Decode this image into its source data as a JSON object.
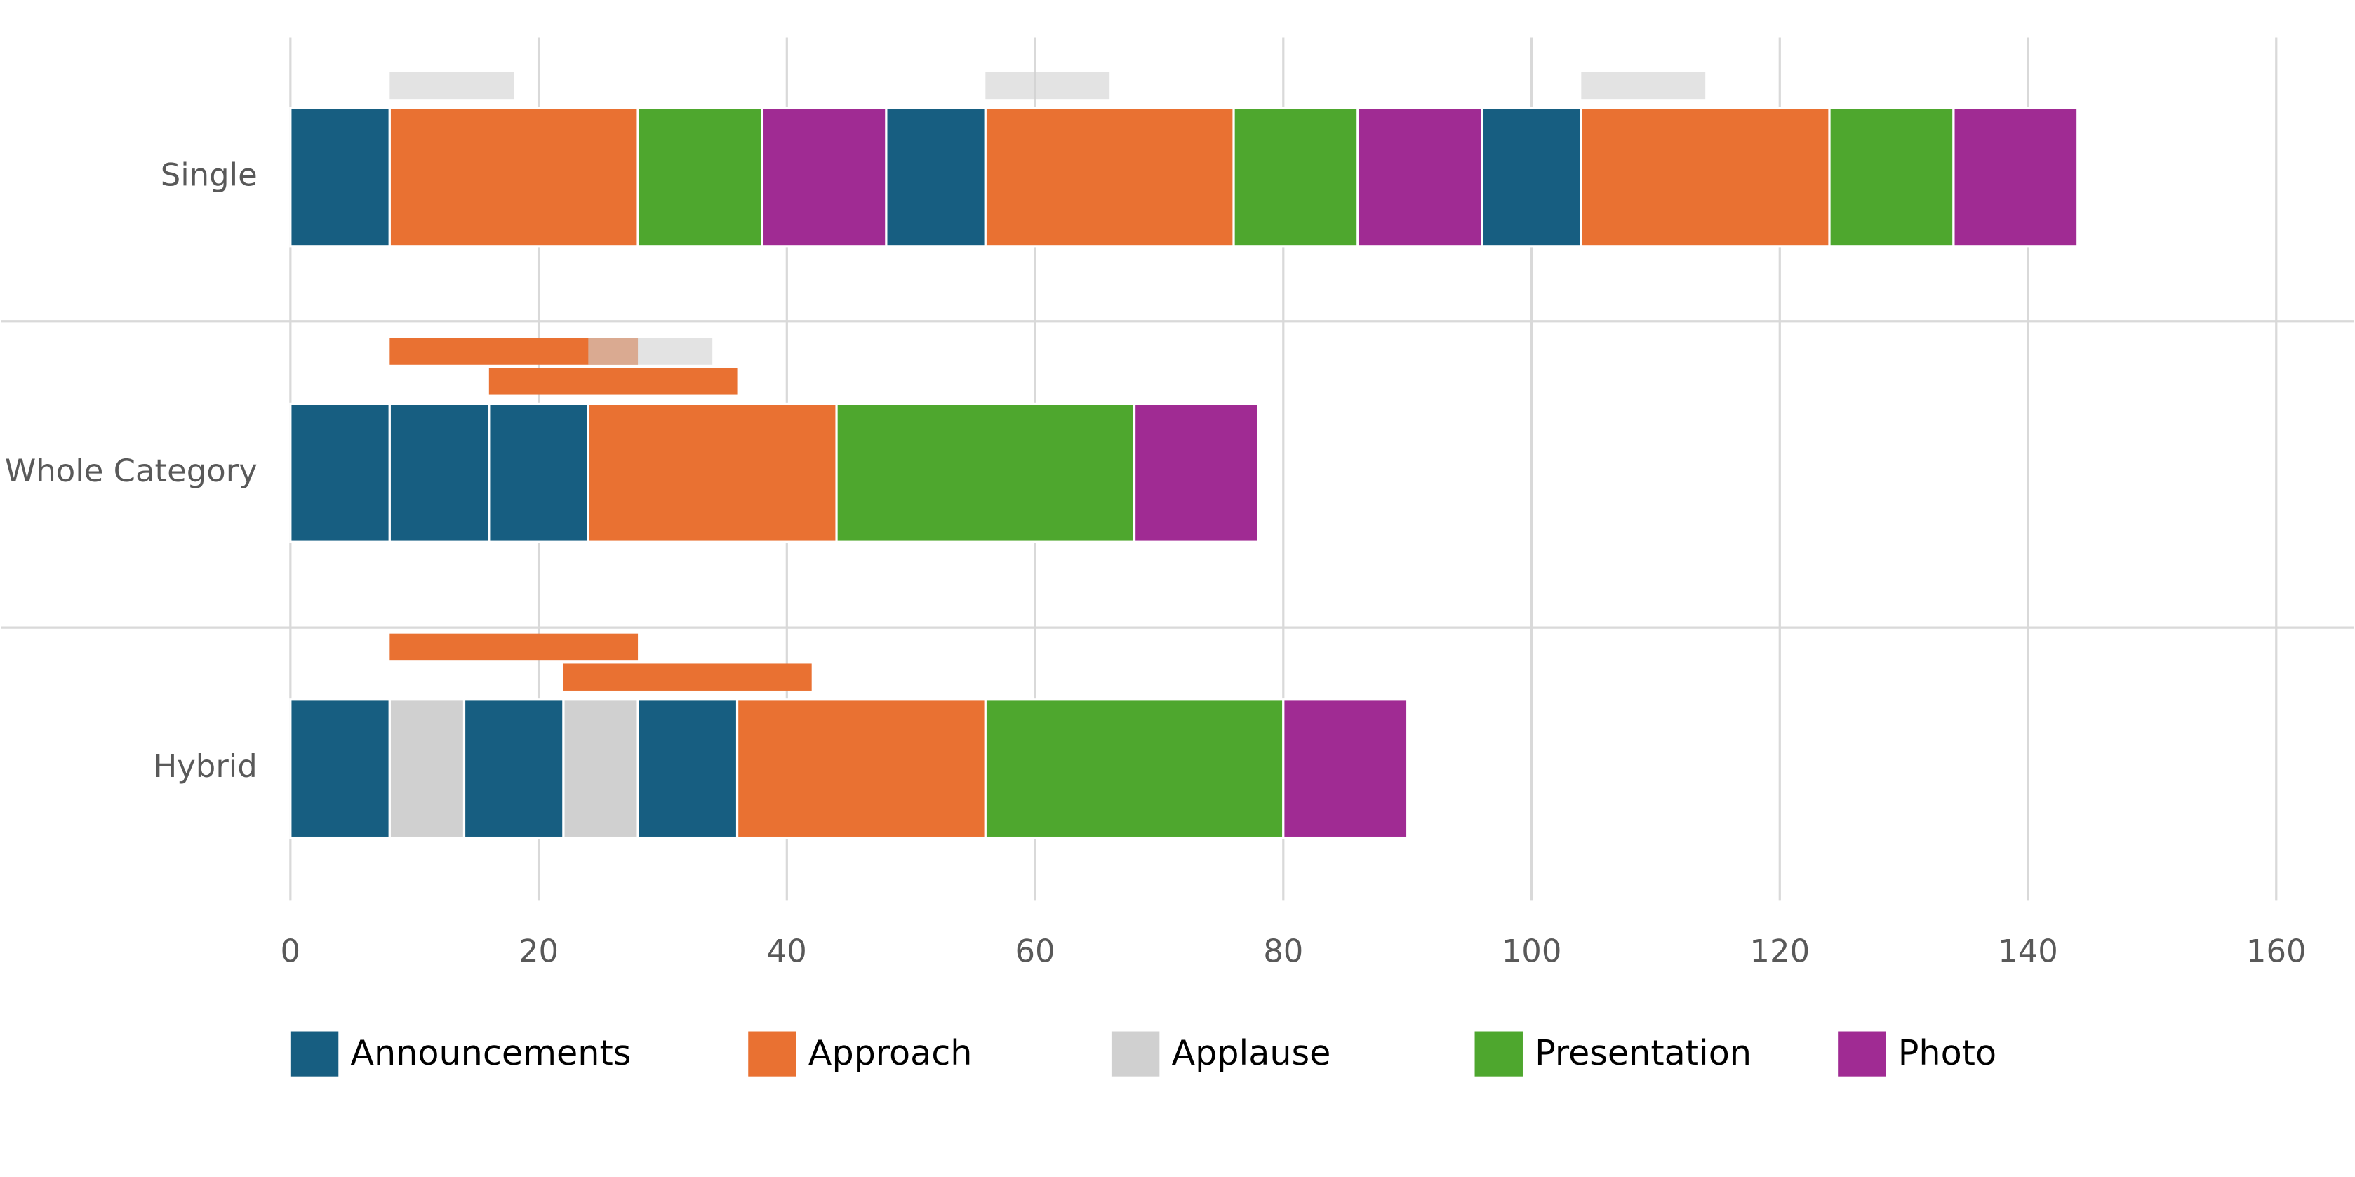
{
  "chart_data": {
    "type": "timeline-bar",
    "categories": [
      "Single",
      "Whole Category",
      "Hybrid"
    ],
    "xlim": [
      0,
      160
    ],
    "xticks": [
      0,
      20,
      40,
      60,
      80,
      100,
      120,
      140,
      160
    ],
    "grid": true,
    "legend": "bottom",
    "series": [
      {
        "name": "Announcements",
        "color": "#175e81",
        "segments": [
          {
            "category": "Single",
            "level": 0,
            "start": 0,
            "end": 8
          },
          {
            "category": "Single",
            "level": 0,
            "start": 48,
            "end": 56
          },
          {
            "category": "Single",
            "level": 0,
            "start": 96,
            "end": 104
          },
          {
            "category": "Whole Category",
            "level": 0,
            "start": 0,
            "end": 8
          },
          {
            "category": "Whole Category",
            "level": 0,
            "start": 8,
            "end": 16
          },
          {
            "category": "Whole Category",
            "level": 0,
            "start": 16,
            "end": 24
          },
          {
            "category": "Hybrid",
            "level": 0,
            "start": 0,
            "end": 8
          },
          {
            "category": "Hybrid",
            "level": 0,
            "start": 14,
            "end": 22
          },
          {
            "category": "Hybrid",
            "level": 0,
            "start": 28,
            "end": 36
          }
        ]
      },
      {
        "name": "Approach",
        "color": "#e97132",
        "segments": [
          {
            "category": "Single",
            "level": 0,
            "start": 8,
            "end": 28
          },
          {
            "category": "Single",
            "level": 0,
            "start": 56,
            "end": 76
          },
          {
            "category": "Single",
            "level": 0,
            "start": 104,
            "end": 124
          },
          {
            "category": "Whole Category",
            "level": 0,
            "start": 24,
            "end": 44
          },
          {
            "category": "Whole Category",
            "level": 1,
            "start": 8,
            "end": 28
          },
          {
            "category": "Whole Category",
            "level": 2,
            "start": 16,
            "end": 36
          },
          {
            "category": "Hybrid",
            "level": 0,
            "start": 36,
            "end": 56
          },
          {
            "category": "Hybrid",
            "level": 1,
            "start": 8,
            "end": 28
          },
          {
            "category": "Hybrid",
            "level": 2,
            "start": 22,
            "end": 42
          }
        ]
      },
      {
        "name": "Applause",
        "color": "#d0d0d0",
        "segments": [
          {
            "category": "Single",
            "level": 1,
            "start": 8,
            "end": 18
          },
          {
            "category": "Single",
            "level": 1,
            "start": 56,
            "end": 66
          },
          {
            "category": "Single",
            "level": 1,
            "start": 104,
            "end": 114
          },
          {
            "category": "Whole Category",
            "level": 1,
            "start": 24,
            "end": 34
          },
          {
            "category": "Hybrid",
            "level": 0,
            "start": 8,
            "end": 14
          },
          {
            "category": "Hybrid",
            "level": 0,
            "start": 22,
            "end": 28
          }
        ]
      },
      {
        "name": "Presentation",
        "color": "#4ea72e",
        "segments": [
          {
            "category": "Single",
            "level": 0,
            "start": 28,
            "end": 38
          },
          {
            "category": "Single",
            "level": 0,
            "start": 76,
            "end": 86
          },
          {
            "category": "Single",
            "level": 0,
            "start": 124,
            "end": 134
          },
          {
            "category": "Whole Category",
            "level": 0,
            "start": 44,
            "end": 68
          },
          {
            "category": "Hybrid",
            "level": 0,
            "start": 56,
            "end": 80
          }
        ]
      },
      {
        "name": "Photo",
        "color": "#a02b93",
        "segments": [
          {
            "category": "Single",
            "level": 0,
            "start": 38,
            "end": 48
          },
          {
            "category": "Single",
            "level": 0,
            "start": 86,
            "end": 96
          },
          {
            "category": "Single",
            "level": 0,
            "start": 134,
            "end": 144
          },
          {
            "category": "Whole Category",
            "level": 0,
            "start": 68,
            "end": 78
          },
          {
            "category": "Hybrid",
            "level": 0,
            "start": 80,
            "end": 90
          }
        ]
      }
    ]
  }
}
